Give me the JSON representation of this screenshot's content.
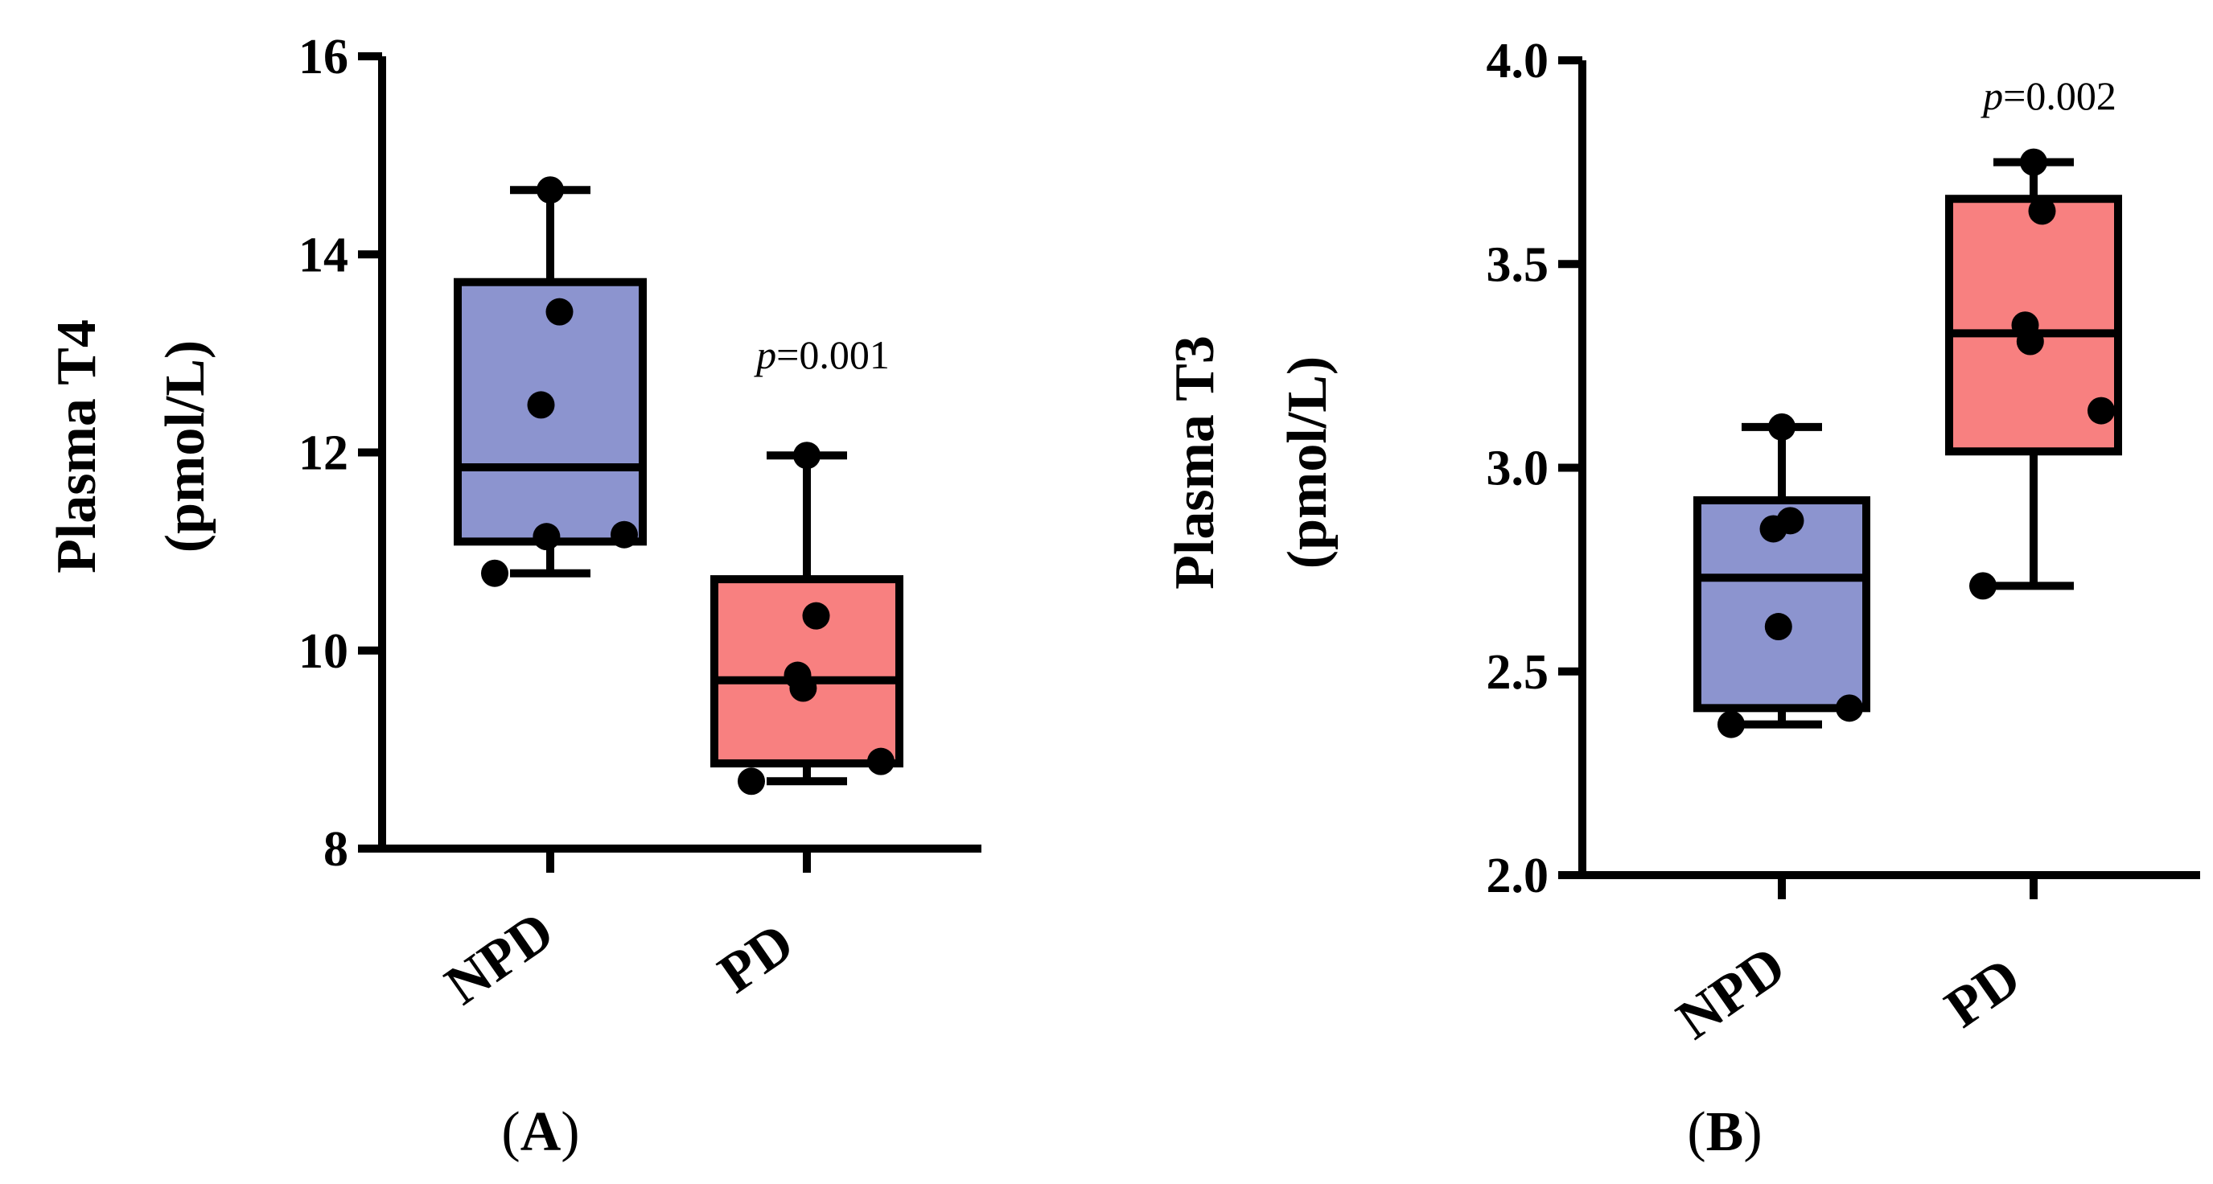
{
  "chart_data": [
    {
      "type": "box",
      "panel_label": "(A)",
      "panel_letter": "A",
      "ylabel_line1": "Plasma T4",
      "ylabel_line2": "(pmol/L)",
      "ylim": [
        8,
        16
      ],
      "yticks": [
        "8",
        "10",
        "12",
        "14",
        "16"
      ],
      "yticks_values": [
        8,
        10,
        12,
        14,
        16
      ],
      "categories": [
        "NPD",
        "PD"
      ],
      "annotation": {
        "italic": "p",
        "text": "=0.001",
        "category": "PD"
      },
      "groups": [
        {
          "category": "NPD",
          "color": "#8C94CF",
          "whisker_min": 10.78,
          "q1": 11.1,
          "median": 11.85,
          "q3": 13.72,
          "whisker_max": 14.65,
          "points": [
            14.65,
            13.42,
            12.48,
            11.15,
            11.17,
            10.78
          ]
        },
        {
          "category": "PD",
          "color": "#F88080",
          "whisker_min": 8.68,
          "q1": 8.86,
          "median": 9.7,
          "q3": 10.72,
          "whisker_max": 11.97,
          "points": [
            11.97,
            10.35,
            9.75,
            9.62,
            8.88,
            8.68
          ]
        }
      ]
    },
    {
      "type": "box",
      "panel_label": "(B)",
      "panel_letter": "B",
      "ylabel_line1": "Plasma T3",
      "ylabel_line2": "(pmol/L)",
      "ylim": [
        2.0,
        4.0
      ],
      "yticks": [
        "2.0",
        "2.5",
        "3.0",
        "3.5",
        "4.0"
      ],
      "yticks_values": [
        2.0,
        2.5,
        3.0,
        3.5,
        4.0
      ],
      "categories": [
        "NPD",
        "PD"
      ],
      "annotation": {
        "italic": "p",
        "text": "=0.002",
        "category": "PD"
      },
      "groups": [
        {
          "category": "NPD",
          "color": "#8C94CF",
          "whisker_min": 2.37,
          "q1": 2.41,
          "median": 2.73,
          "q3": 2.92,
          "whisker_max": 3.1,
          "points": [
            3.1,
            2.87,
            2.85,
            2.61,
            2.41,
            2.37
          ]
        },
        {
          "category": "PD",
          "color": "#F88080",
          "whisker_min": 2.71,
          "q1": 3.04,
          "median": 3.33,
          "q3": 3.66,
          "whisker_max": 3.75,
          "points": [
            3.75,
            3.63,
            3.35,
            3.31,
            3.14,
            2.71
          ]
        }
      ]
    }
  ]
}
